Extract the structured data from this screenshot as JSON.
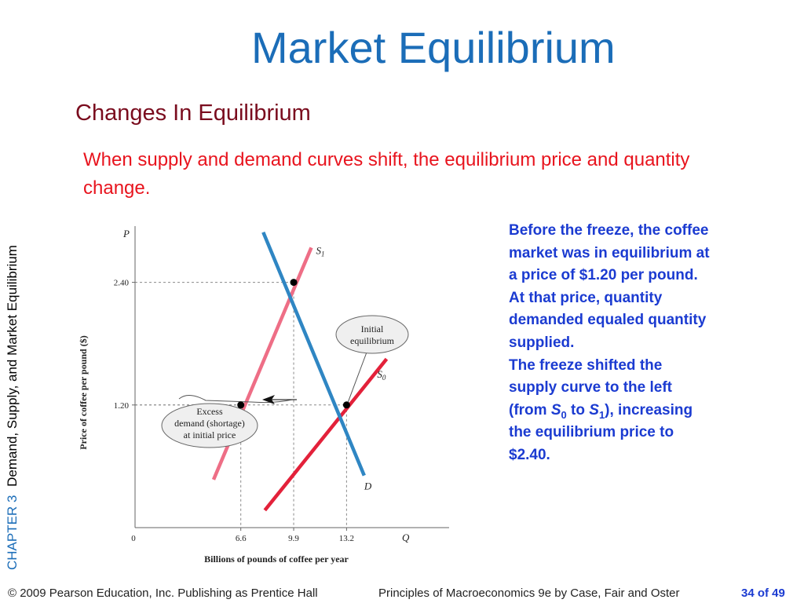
{
  "slide": {
    "title": "Market Equilibrium",
    "subtitle": "Changes In Equilibrium",
    "intro": "When supply and demand curves shift, the equilibrium price and quantity change."
  },
  "sidebar": {
    "chapter": "CHAPTER 3",
    "chapter_title": "Demand, Supply, and Market Equilibrium"
  },
  "explanation": {
    "p1": "Before the freeze, the coffee market was in equilibrium at a price of $1.20 per pound.",
    "p2": "At that price, quantity demanded equaled quantity supplied.",
    "p3a": "The freeze shifted the supply curve to the left (from ",
    "p3_s0": "S",
    "p3_s0_sub": "0",
    "p3_to": " to ",
    "p3_s1": "S",
    "p3_s1_sub": "1",
    "p3b": "), increasing the equilibrium price to $2.40."
  },
  "footer": {
    "copyright": "© 2009 Pearson Education, Inc. Publishing as Prentice Hall",
    "book": "Principles of Macroeconomics 9e by Case, Fair and Oster",
    "page": "34 of 49"
  },
  "chart_data": {
    "type": "line",
    "xlabel": "Billions of pounds of coffee per year",
    "ylabel": "Price of coffee per pound ($)",
    "x_axis_symbol": "Q",
    "y_axis_symbol": "P",
    "origin_label": "0",
    "xlim": [
      0,
      19.6
    ],
    "ylim": [
      0,
      2.95
    ],
    "x_ticks": [
      {
        "value": 6.6,
        "label": "6.6"
      },
      {
        "value": 9.9,
        "label": "9.9"
      },
      {
        "value": 13.2,
        "label": "13.2"
      }
    ],
    "y_ticks": [
      {
        "value": 1.2,
        "label": "1.20"
      },
      {
        "value": 2.4,
        "label": "2.40"
      }
    ],
    "series": [
      {
        "name": "S0",
        "label_main": "S",
        "label_sub": "0",
        "color": "#e3213a",
        "points": [
          [
            8.1,
            0.17
          ],
          [
            15.7,
            1.65
          ]
        ]
      },
      {
        "name": "S1",
        "label_main": "S",
        "label_sub": "1",
        "color": "#ee6e86",
        "points": [
          [
            4.9,
            0.47
          ],
          [
            11.0,
            2.74
          ]
        ]
      },
      {
        "name": "D",
        "label_main": "D",
        "label_sub": "",
        "color": "#2f86c3",
        "points": [
          [
            8.0,
            2.89
          ],
          [
            14.3,
            0.51
          ]
        ]
      }
    ],
    "equilibria": [
      {
        "name": "initial",
        "x": 13.2,
        "y": 1.2
      },
      {
        "name": "new",
        "x": 9.9,
        "y": 2.4
      },
      {
        "name": "s1-at-initial-price",
        "x": 6.6,
        "y": 1.2
      }
    ],
    "callouts": [
      {
        "id": "initial-equilibrium",
        "lines": [
          "Initial",
          "equilibrium"
        ]
      },
      {
        "id": "excess-demand",
        "lines": [
          "Excess",
          "demand (shortage)",
          "at initial price"
        ]
      }
    ],
    "grid": false,
    "legend": "none"
  }
}
